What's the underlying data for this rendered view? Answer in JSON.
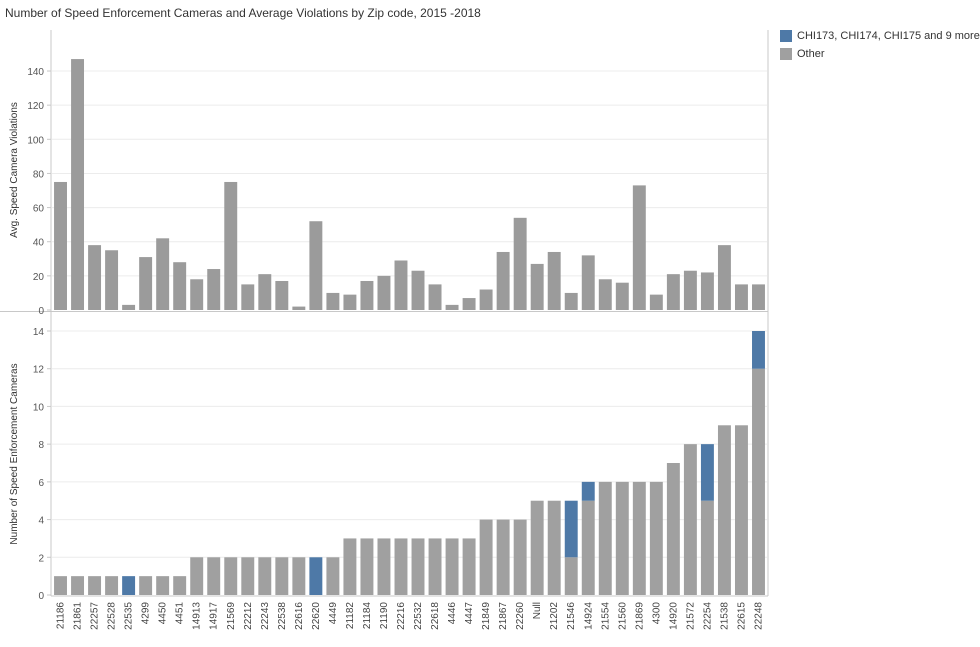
{
  "title": "Number of Speed Enforcement Cameras  and Average Violations by Zip code, 2015 -2018",
  "legend": [
    {
      "label": "CHI173, CHI174, CHI175 and 9 more",
      "color": "#4e79a7"
    },
    {
      "label": "Other",
      "color": "#a0a0a0"
    }
  ],
  "chart_data": [
    {
      "type": "bar",
      "title": "",
      "ylabel": "Avg. Speed Camera Violations",
      "ylim": [
        0,
        150
      ],
      "yticks": [
        0,
        20,
        40,
        60,
        80,
        100,
        120,
        140
      ],
      "categories": [
        "21186",
        "21861",
        "22257",
        "22528",
        "22535",
        "4299",
        "4450",
        "4451",
        "14913",
        "14917",
        "21569",
        "22212",
        "22243",
        "22538",
        "22616",
        "22620",
        "4449",
        "21182",
        "21184",
        "21190",
        "22216",
        "22532",
        "22618",
        "4446",
        "4447",
        "21849",
        "21867",
        "22260",
        "Null",
        "21202",
        "21546",
        "14924",
        "21554",
        "21560",
        "21869",
        "4300",
        "14920",
        "21572",
        "22254",
        "21538",
        "22615",
        "22248"
      ],
      "series": [
        {
          "name": "",
          "color": "#9b9b9b",
          "values": [
            75,
            147,
            38,
            35,
            3,
            31,
            42,
            28,
            18,
            24,
            75,
            15,
            21,
            17,
            2,
            52,
            10,
            9,
            17,
            20,
            29,
            23,
            15,
            3,
            7,
            12,
            34,
            54,
            27,
            34,
            10,
            32,
            18,
            16,
            73,
            9,
            21,
            23,
            22,
            38,
            15,
            15
          ]
        }
      ],
      "grid": true
    },
    {
      "type": "bar",
      "title": "",
      "ylabel": "Number of Speed Enforcement Cameras",
      "ylim": [
        0,
        14.5
      ],
      "yticks": [
        0,
        2,
        4,
        6,
        8,
        10,
        12,
        14
      ],
      "stacked": true,
      "categories": [
        "21186",
        "21861",
        "22257",
        "22528",
        "22535",
        "4299",
        "4450",
        "4451",
        "14913",
        "14917",
        "21569",
        "22212",
        "22243",
        "22538",
        "22616",
        "22620",
        "4449",
        "21182",
        "21184",
        "21190",
        "22216",
        "22532",
        "22618",
        "4446",
        "4447",
        "21849",
        "21867",
        "22260",
        "Null",
        "21202",
        "21546",
        "14924",
        "21554",
        "21560",
        "21869",
        "4300",
        "14920",
        "21572",
        "22254",
        "21538",
        "22615",
        "22248"
      ],
      "series": [
        {
          "name": "Other",
          "color": "#a0a0a0",
          "values": [
            1,
            1,
            1,
            1,
            0,
            1,
            1,
            1,
            2,
            2,
            2,
            2,
            2,
            2,
            2,
            0,
            2,
            3,
            3,
            3,
            3,
            3,
            3,
            3,
            3,
            4,
            4,
            4,
            5,
            5,
            2,
            5,
            6,
            6,
            6,
            6,
            7,
            8,
            5,
            9,
            9,
            12
          ]
        },
        {
          "name": "CHI173, CHI174, CHI175 and 9 more",
          "color": "#4e79a7",
          "values": [
            0,
            0,
            0,
            0,
            1,
            0,
            0,
            0,
            0,
            0,
            0,
            0,
            0,
            0,
            0,
            2,
            0,
            0,
            0,
            0,
            0,
            0,
            0,
            0,
            0,
            0,
            0,
            0,
            0,
            0,
            3,
            1,
            0,
            0,
            0,
            0,
            0,
            0,
            3,
            0,
            0,
            2
          ]
        }
      ],
      "grid": true
    }
  ]
}
